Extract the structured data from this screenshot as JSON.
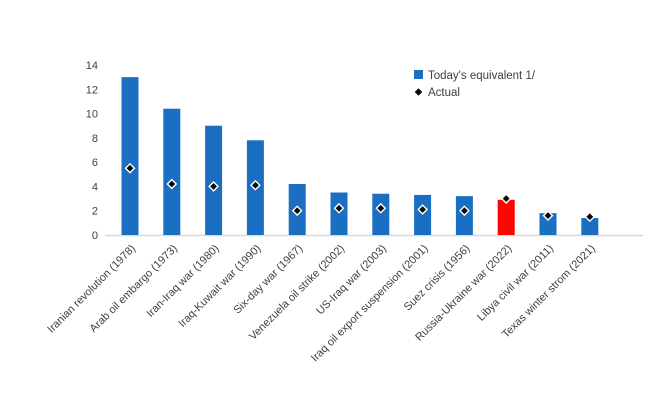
{
  "chart_data": {
    "type": "bar",
    "title": "",
    "xlabel": "",
    "ylabel": "",
    "categories": [
      "Iranian revolution (1978)",
      "Arab oil embargo (1973)",
      "Iran-Iraq war (1980)",
      "Iraq-Kuwait war (1990)",
      "Six-day war (1967)",
      "Venezuela oil strike (2002)",
      "US-Iraq war (2003)",
      "Iraq oil export suspension (2001)",
      "Suez crisis (1956)",
      "Russia-Ukraine war (2022)",
      "Libya civil war (2011)",
      "Texas winter strom (2021)"
    ],
    "series": [
      {
        "name": "Today's equivalent 1/",
        "type": "bar",
        "values": [
          13.0,
          10.4,
          9.0,
          7.8,
          4.2,
          3.5,
          3.4,
          3.3,
          3.2,
          2.9,
          1.8,
          1.4
        ]
      },
      {
        "name": "Actual",
        "type": "scatter",
        "values": [
          5.5,
          4.2,
          4.0,
          4.1,
          2.0,
          2.2,
          2.2,
          2.1,
          2.0,
          3.0,
          1.6,
          1.5
        ]
      }
    ],
    "y_axis": {
      "min": 0,
      "max": 14,
      "step": 2,
      "ticks": [
        0,
        2,
        4,
        6,
        8,
        10,
        12,
        14
      ]
    },
    "grid": "baseline-only",
    "legend_position": "top-right",
    "legend": [
      {
        "label": "Today's equivalent 1/",
        "marker": "square",
        "color": "#1b6fc2"
      },
      {
        "label": "Actual",
        "marker": "diamond",
        "color": "#0a0a0a"
      }
    ],
    "bar_color": "#1b6fc2",
    "highlight_index": 9,
    "highlight_color": "#fb0702",
    "marker_color": "#0a0a0a",
    "marker_outline_color": "#ffffff",
    "axis_line_color": "#d9d9d9",
    "text_color": "#3f3f3f"
  }
}
